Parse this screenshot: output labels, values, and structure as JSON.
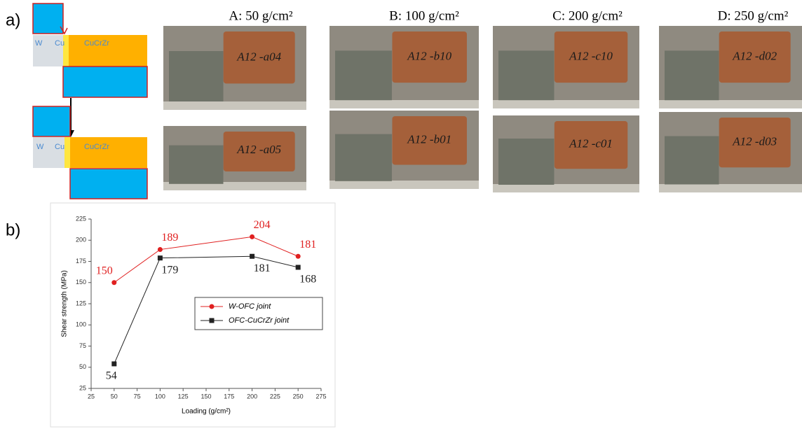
{
  "panel_a": {
    "label": "a)",
    "diagram": {
      "w": "W",
      "cu": "Cu",
      "cucrzr": "CuCrZr"
    },
    "photos": [
      {
        "title": "A: 50 g/cm²",
        "inscriptions": [
          "A12 -a04",
          "A12 -a05"
        ]
      },
      {
        "title": "B: 100 g/cm²",
        "inscriptions": [
          "A12 -b10",
          "A12 -b01"
        ]
      },
      {
        "title": "C: 200 g/cm²",
        "inscriptions": [
          "A12 -c10",
          "A12 -c01"
        ]
      },
      {
        "title": "D: 250 g/cm²",
        "inscriptions": [
          "A12 -d02",
          "A12 -d03"
        ]
      }
    ]
  },
  "panel_b": {
    "label": "b)"
  },
  "chart_data": {
    "type": "line",
    "x_label": "Loading (g/cm²)",
    "y_label": "Shear strength (MPa)",
    "x": [
      50,
      100,
      200,
      250
    ],
    "series": [
      {
        "name": "W-OFC joint",
        "color": "#e02020",
        "marker": "circle",
        "values": [
          150,
          189,
          204,
          181
        ]
      },
      {
        "name": "OFC-CuCrZr joint",
        "color": "#222222",
        "marker": "square",
        "values": [
          54,
          179,
          181,
          168
        ]
      }
    ],
    "xlim": [
      25,
      275
    ],
    "xticks": [
      25,
      50,
      75,
      100,
      125,
      150,
      175,
      200,
      225,
      250,
      275
    ],
    "ylim": [
      25,
      225
    ],
    "yticks": [
      25,
      50,
      75,
      100,
      125,
      150,
      175,
      200,
      225
    ],
    "legend": "center right"
  }
}
